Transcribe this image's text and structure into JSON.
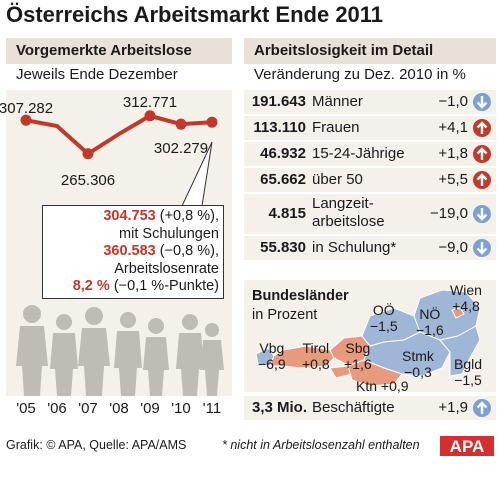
{
  "title": "Österreichs Arbeitsmarkt Ende 2011",
  "left_panel": {
    "header": "Vorgemerkte Arbeitslose",
    "subtitle": "Jeweils Ende Dezember",
    "callout": {
      "l1_value": "304.753",
      "l1_rest": " (+0,8 %),",
      "l2": "mit Schulungen",
      "l3_value": "360.583",
      "l3_rest": " (−0,8 %),",
      "l4": "Arbeitslosenrate",
      "l5_value": "8,2 %",
      "l5_rest": " (−0,1 %-Punkte)"
    }
  },
  "chart_data": {
    "type": "line",
    "x": [
      "'05",
      "'06",
      "'07",
      "'08",
      "'09",
      "'10",
      "'11"
    ],
    "series": [
      {
        "values": [
          307282,
          300000,
          265306,
          290000,
          312771,
          302279,
          304753
        ]
      }
    ],
    "point_labels": [
      "307.282",
      "",
      "265.306",
      "",
      "312.771",
      "302.279",
      ""
    ],
    "ylim": [
      255000,
      325000
    ],
    "line_color": "#c0392b"
  },
  "right_panel": {
    "header": "Arbeitslosigkeit im Detail",
    "subtitle": "Veränderung zu Dez. 2010 in %",
    "rows": [
      {
        "value": "191.643",
        "label": "Männer",
        "change": "−1,0",
        "dir": "down"
      },
      {
        "value": "113.110",
        "label": "Frauen",
        "change": "+4,1",
        "dir": "up"
      },
      {
        "value": "46.932",
        "label": "15-24-Jährige",
        "change": "+1,8",
        "dir": "up"
      },
      {
        "value": "65.662",
        "label": "über 50",
        "change": "+5,5",
        "dir": "up"
      },
      {
        "value": "4.815",
        "label_1": "Langzeit-",
        "label_2": "arbeitslose",
        "change": "−19,0",
        "dir": "down"
      },
      {
        "value": "55.830",
        "label": "in Schulung*",
        "change": "−9,0",
        "dir": "down"
      }
    ],
    "map": {
      "title": "Bundesländer",
      "subtitle": "in Prozent",
      "states": [
        {
          "name": "Vbg",
          "change": "−6,9"
        },
        {
          "name": "Tirol",
          "change": "+0,8"
        },
        {
          "name": "Sbg",
          "change": "+1,6"
        },
        {
          "name": "OÖ",
          "change": "−1,5"
        },
        {
          "name": "NÖ",
          "change": "−1,6"
        },
        {
          "name": "Wien",
          "change": "+4,8"
        },
        {
          "name": "Stmk",
          "change": "−0,3"
        },
        {
          "name": "Bgld",
          "change": "−1,5"
        },
        {
          "name": "Ktn",
          "change": "+0,9"
        }
      ],
      "colors": {
        "increase": "#e89a7e",
        "decrease": "#9fb6d6"
      }
    },
    "employment": {
      "value": "3,3 Mio.",
      "label": "Beschäftigte",
      "change": "+1,9",
      "dir": "up"
    }
  },
  "footer": {
    "source": "Grafik: © APA, Quelle: APA/AMS",
    "note": "* nicht in Arbeitslosenzahl enthalten",
    "logo": "APA"
  },
  "colors": {
    "up": "#c0392b",
    "down": "#7aa0d4",
    "panel": "#f4f0ea",
    "header": "#e7e1d8"
  }
}
